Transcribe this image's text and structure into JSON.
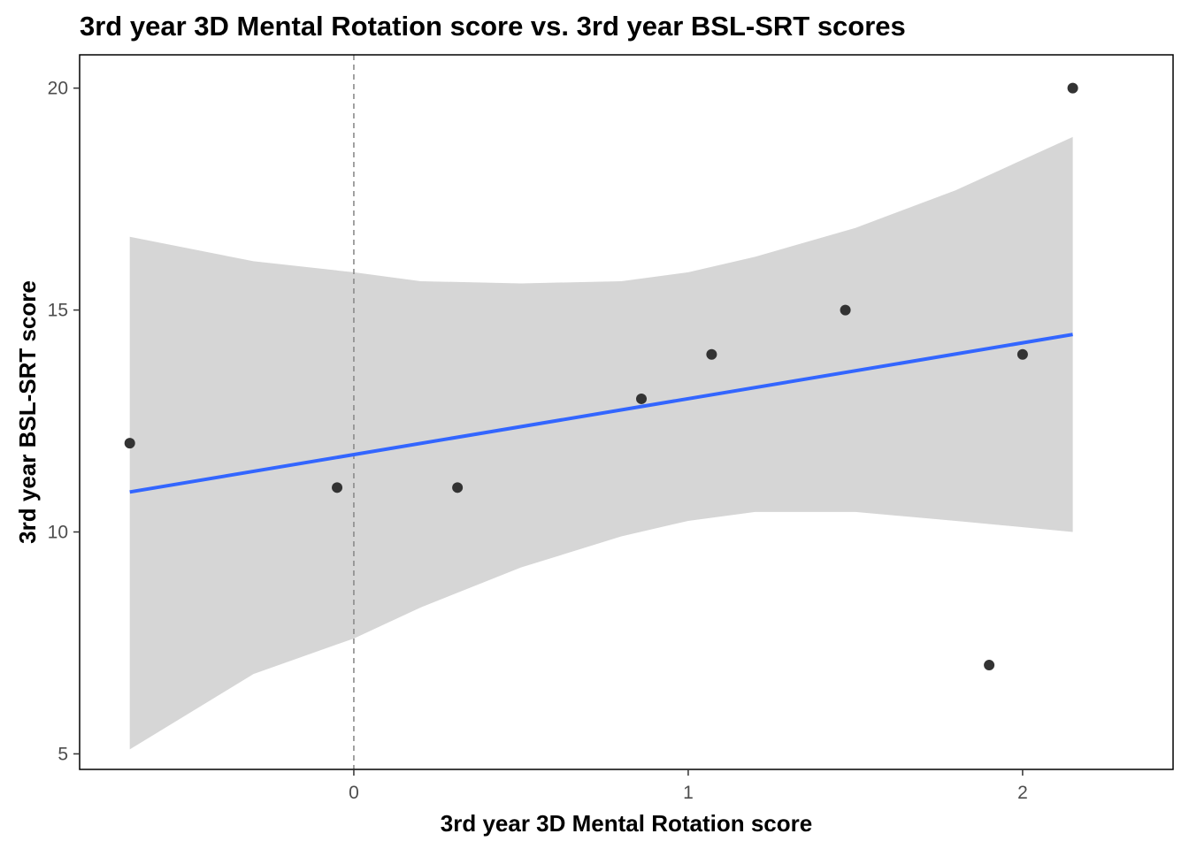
{
  "chart_data": {
    "type": "scatter",
    "title": "3rd year 3D Mental Rotation score vs. 3rd year BSL-SRT scores",
    "xlabel": "3rd year 3D Mental Rotation score",
    "ylabel": "3rd year BSL-SRT score",
    "xlim": [
      -0.82,
      2.45
    ],
    "ylim": [
      4.65,
      20.75
    ],
    "x_ticks": [
      0,
      1,
      2
    ],
    "y_ticks": [
      5,
      10,
      15,
      20
    ],
    "grid": false,
    "reference_line": {
      "x": 0,
      "style": "dashed",
      "color": "#8c8c8c"
    },
    "points": [
      {
        "x": -0.67,
        "y": 12
      },
      {
        "x": -0.05,
        "y": 11
      },
      {
        "x": 0.31,
        "y": 11
      },
      {
        "x": 0.86,
        "y": 13
      },
      {
        "x": 1.07,
        "y": 14
      },
      {
        "x": 1.47,
        "y": 15
      },
      {
        "x": 1.9,
        "y": 7
      },
      {
        "x": 2.0,
        "y": 14
      },
      {
        "x": 2.15,
        "y": 20
      }
    ],
    "fit_line": {
      "method": "linear",
      "color": "#3366ff",
      "x": [
        -0.67,
        2.15
      ],
      "y": [
        10.9,
        14.45
      ]
    },
    "confidence_band": {
      "color": "#d6d6d6",
      "x": [
        -0.67,
        -0.3,
        0.0,
        0.2,
        0.5,
        0.8,
        1.0,
        1.2,
        1.5,
        1.8,
        2.15
      ],
      "lower": [
        5.1,
        6.8,
        7.6,
        8.3,
        9.2,
        9.9,
        10.25,
        10.45,
        10.45,
        10.25,
        10.0
      ],
      "upper": [
        16.65,
        16.1,
        15.85,
        15.65,
        15.6,
        15.65,
        15.85,
        16.2,
        16.85,
        17.7,
        18.9
      ]
    },
    "colors": {
      "point": "#333333",
      "panel_border": "#000000",
      "tick_label": "#4d4d4d"
    }
  }
}
